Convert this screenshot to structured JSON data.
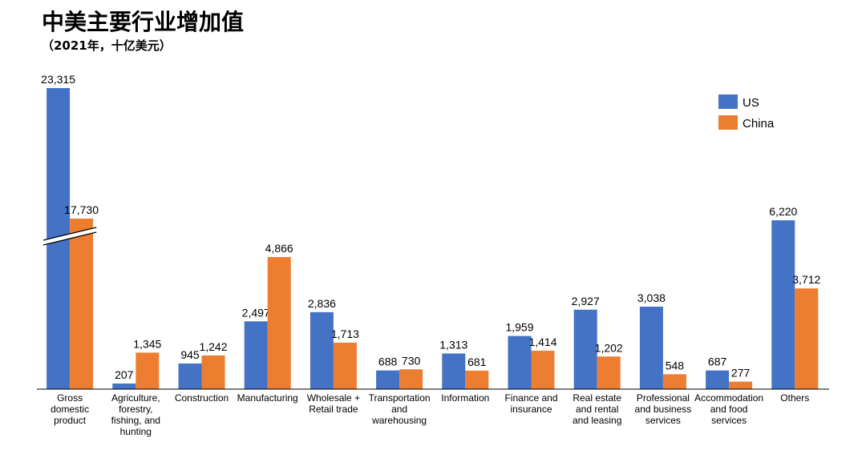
{
  "chart_data": {
    "type": "bar",
    "title": "中美主要行业增加值",
    "subtitle": "（2021年，十亿美元）",
    "categories": [
      "Gross domestic product",
      "Agriculture, forestry, fishing, and hunting",
      "Construction",
      "Manufacturing",
      "Wholesale + Retail trade",
      "Transportation and warehousing",
      "Information",
      "Finance and insurance",
      "Real estate and rental and leasing",
      "Professional and business services",
      "Accommodation and food services",
      "Others"
    ],
    "category_lines": [
      [
        "Gross",
        "domestic",
        "product"
      ],
      [
        "Agriculture,",
        "forestry,",
        "fishing, and",
        "hunting"
      ],
      [
        "Construction"
      ],
      [
        "Manufacturing"
      ],
      [
        "Wholesale +",
        "Retail trade"
      ],
      [
        "Transportation",
        "and",
        "warehousing"
      ],
      [
        "Information"
      ],
      [
        "Finance and",
        "insurance"
      ],
      [
        "Real estate",
        "and rental",
        "and leasing"
      ],
      [
        "Professional",
        "and business",
        "services"
      ],
      [
        "Accommodation",
        "and food",
        "services"
      ],
      [
        "Others"
      ]
    ],
    "series": [
      {
        "name": "US",
        "color": "#4472C4",
        "values": [
          23315,
          207,
          945,
          2497,
          2836,
          688,
          1313,
          1959,
          2927,
          3038,
          687,
          6220
        ],
        "labels": [
          "23,315",
          "207",
          "945",
          "2,497",
          "2,836",
          "688",
          "1,313",
          "1,959",
          "2,927",
          "3,038",
          "687",
          "6,220"
        ]
      },
      {
        "name": "China",
        "color": "#ED7D31",
        "values": [
          17730,
          1345,
          1242,
          4866,
          1713,
          730,
          681,
          1414,
          1202,
          548,
          277,
          3712
        ],
        "labels": [
          "17,730",
          "1,345",
          "1,242",
          "4,866",
          "1,713",
          "730",
          "681",
          "1,414",
          "1,202",
          "548",
          "277",
          "3,712"
        ]
      }
    ],
    "axis_break": true,
    "grid": false,
    "legend_position": "top-right"
  }
}
